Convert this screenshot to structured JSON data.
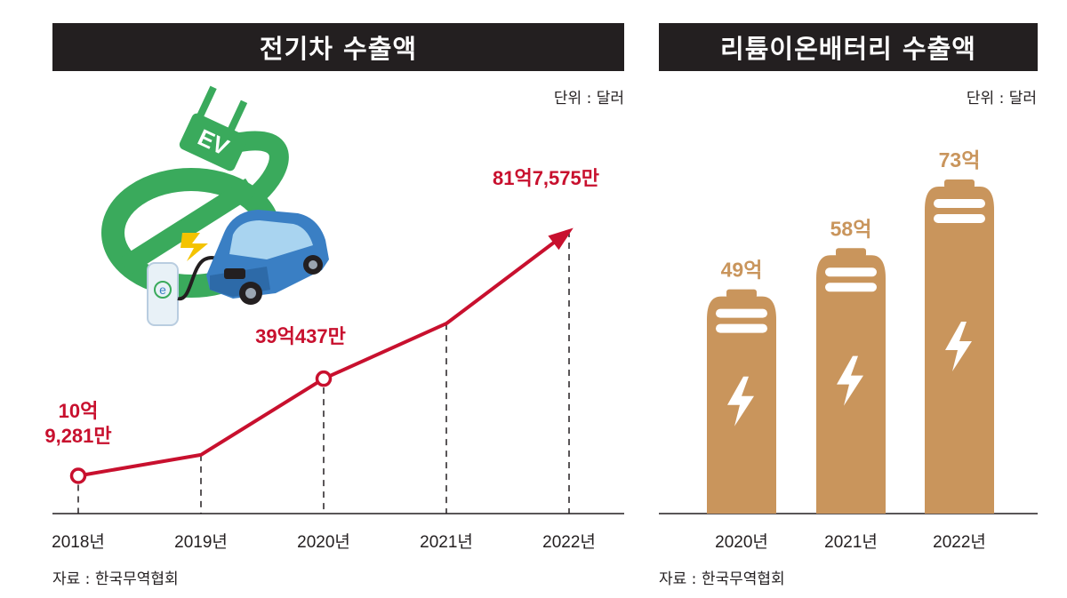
{
  "ev_panel": {
    "title": "전기차 수출액",
    "unit": "단위 : 달러",
    "source": "자료 : 한국무역협회"
  },
  "battery_panel": {
    "title": "리튬이온배터리 수출액",
    "unit": "단위 : 달러",
    "source": "자료 : 한국무역협회"
  },
  "illustration": {
    "icon": "ev-charging-car-icon",
    "plug_text": "EV",
    "station_text": "e"
  },
  "colors": {
    "line": "#c8102e",
    "bar": "#c9955c",
    "ev_green": "#3aaa5c",
    "car_blue": "#3a7fc4",
    "title_bg": "#231f20"
  },
  "chart_data": [
    {
      "type": "line",
      "title": "전기차 수출액",
      "unit": "달러",
      "categories": [
        "2018년",
        "2019년",
        "2020년",
        "2021년",
        "2022년"
      ],
      "values_usd": [
        1092810000,
        1700000000,
        3904370000,
        5500000000,
        8175750000
      ],
      "value_labels": [
        [
          "10억",
          "9,281만"
        ],
        [],
        [
          "39억437만"
        ],
        [],
        [
          "81억7,575만"
        ]
      ],
      "ylim": [
        0,
        9000000000
      ],
      "markers": [
        "circle",
        "none",
        "circle",
        "none",
        "arrow"
      ],
      "grid": false
    },
    {
      "type": "bar",
      "title": "리튬이온배터리 수출액",
      "unit": "달러",
      "categories": [
        "2020년",
        "2021년",
        "2022년"
      ],
      "values_usd": [
        4900000000,
        5800000000,
        7300000000
      ],
      "value_labels": [
        "49억",
        "58억",
        "73억"
      ],
      "ylim": [
        0,
        7300000000
      ],
      "bar_icon": "battery-icon",
      "grid": false
    }
  ]
}
